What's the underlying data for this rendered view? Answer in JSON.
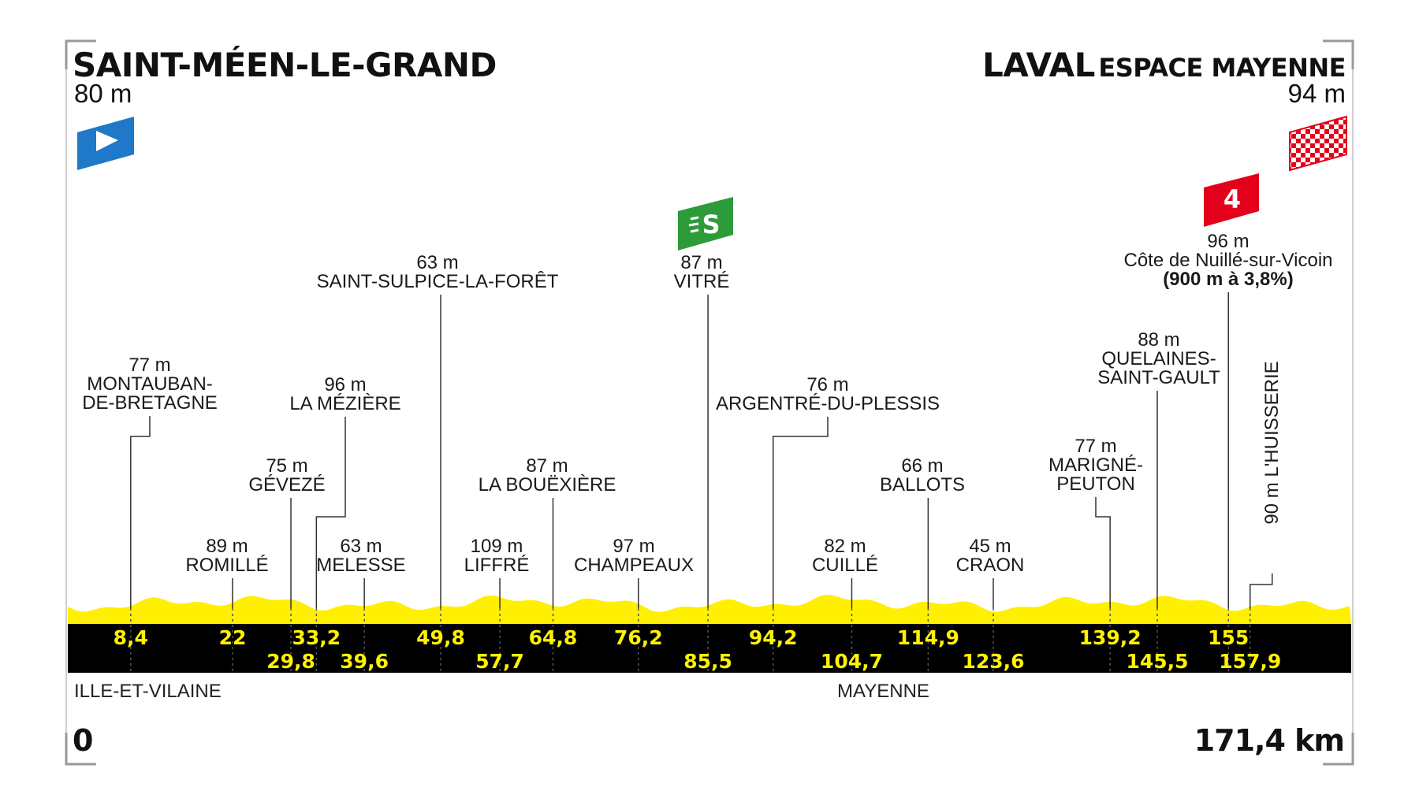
{
  "start": {
    "name": "SAINT-MÉEN-LE-GRAND",
    "altitude": "80 m",
    "km": "0",
    "department": "ILLE-ET-VILAINE"
  },
  "finish": {
    "name": "LAVAL",
    "name_suffix": "ESPACE MAYENNE",
    "altitude": "94 m",
    "km": "171,4 km",
    "department": "MAYENNE"
  },
  "colors": {
    "profile_yellow": "#ffef00",
    "band_black": "#000000",
    "km_text": "#fff200",
    "start_flag": "#1f78c8",
    "sprint_green": "#2e9b3a",
    "climb_red": "#e3001b",
    "finish_check": "#e3001b"
  },
  "icons": {
    "start": "start-flag-icon",
    "finish": "checkered-flag-icon",
    "sprint": "intermediate-sprint-icon",
    "climb": "climb-category-4-icon"
  },
  "sprint_label": "S",
  "climb_label": "4",
  "places": [
    {
      "km": 8.4,
      "km_label": "8,4",
      "altitude": "77 m",
      "name": [
        "MONTAUBAN-",
        "DE-BRETAGNE"
      ]
    },
    {
      "km": 22,
      "km_label": "22",
      "altitude": "89 m",
      "name": [
        "ROMILLÉ"
      ]
    },
    {
      "km": 29.8,
      "km_label": "29,8",
      "altitude": "75 m",
      "name": [
        "GÉVEZÉ"
      ]
    },
    {
      "km": 33.2,
      "km_label": "33,2",
      "altitude": "96 m",
      "name": [
        "LA MÉZIÈRE"
      ]
    },
    {
      "km": 39.6,
      "km_label": "39,6",
      "altitude": "63 m",
      "name": [
        "MELESSE"
      ]
    },
    {
      "km": 49.8,
      "km_label": "49,8",
      "altitude": "63 m",
      "name": [
        "SAINT-SULPICE-LA-FORÊT"
      ]
    },
    {
      "km": 57.7,
      "km_label": "57,7",
      "altitude": "109 m",
      "name": [
        "LIFFRÉ"
      ]
    },
    {
      "km": 64.8,
      "km_label": "64,8",
      "altitude": "87 m",
      "name": [
        "LA BOUËXIÈRE"
      ]
    },
    {
      "km": 76.2,
      "km_label": "76,2",
      "altitude": "97 m",
      "name": [
        "CHAMPEAUX"
      ]
    },
    {
      "km": 85.5,
      "km_label": "85,5",
      "altitude": "87 m",
      "name": [
        "VITRÉ"
      ]
    },
    {
      "km": 94.2,
      "km_label": "94,2",
      "altitude": "76 m",
      "name": [
        "ARGENTRÉ-DU-PLESSIS"
      ]
    },
    {
      "km": 104.7,
      "km_label": "104,7",
      "altitude": "82 m",
      "name": [
        "CUILLÉ"
      ]
    },
    {
      "km": 114.9,
      "km_label": "114,9",
      "altitude": "66 m",
      "name": [
        "BALLOTS"
      ]
    },
    {
      "km": 123.6,
      "km_label": "123,6",
      "altitude": "45 m",
      "name": [
        "CRAON"
      ]
    },
    {
      "km": 139.2,
      "km_label": "139,2",
      "altitude": "77 m",
      "name": [
        "MARIGNÉ-",
        "PEUTON"
      ]
    },
    {
      "km": 145.5,
      "km_label": "145,5",
      "altitude": "88 m",
      "name": [
        "QUELAINES-",
        "SAINT-GAULT"
      ]
    },
    {
      "km": 155,
      "km_label": "155",
      "altitude": "96 m",
      "name": [
        "Côte de Nuillé-sur-Vicoin"
      ],
      "note": "(900 m à 3,8%)"
    },
    {
      "km": 157.9,
      "km_label": "157,9",
      "altitude": "90 m",
      "name": [
        "L'HUISSERIE"
      ]
    }
  ]
}
